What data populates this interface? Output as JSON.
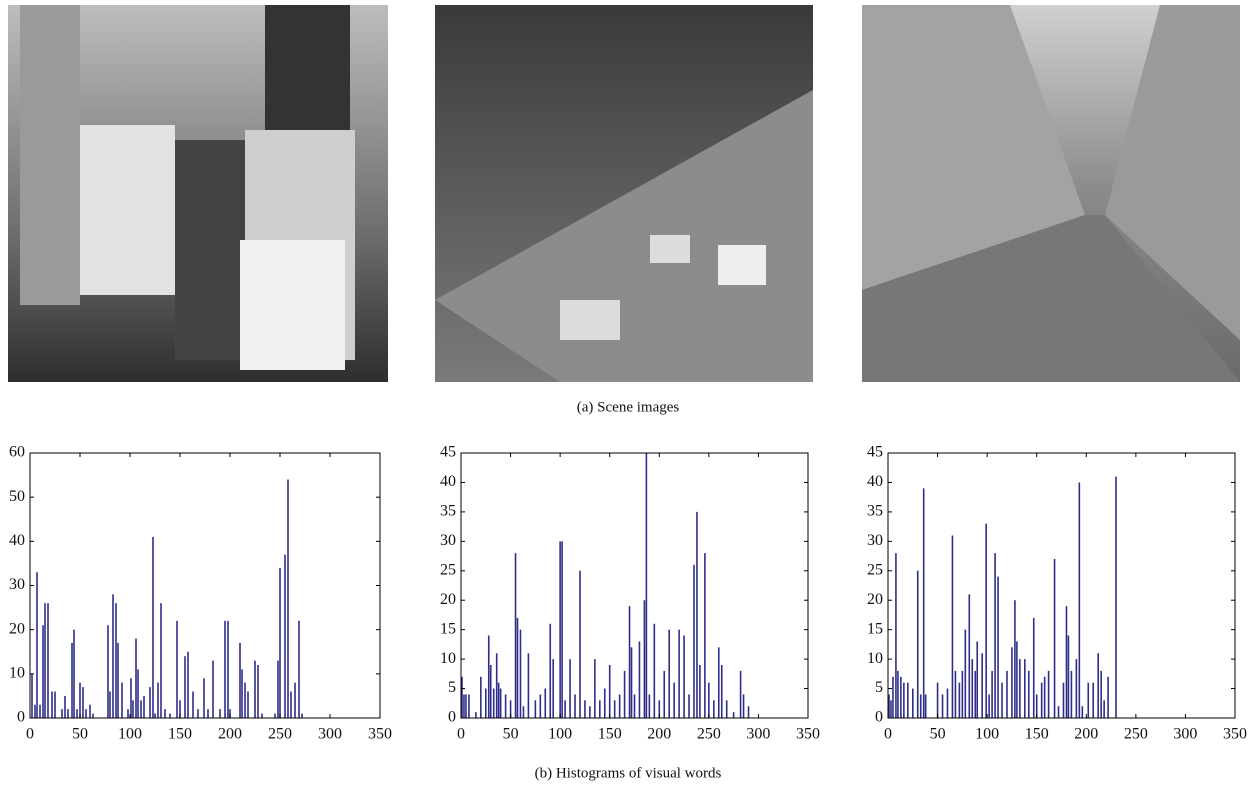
{
  "captions": [
    "(a)  Scene images",
    "(b)  Histograms of visual words"
  ],
  "chart_data": [
    {
      "type": "bar",
      "color": "#2e2e8a",
      "x": [
        2,
        5,
        7,
        10,
        13,
        15,
        18,
        22,
        25,
        32,
        35,
        38,
        42,
        44,
        47,
        50,
        53,
        56,
        60,
        63,
        78,
        80,
        83,
        86,
        88,
        92,
        98,
        101,
        103,
        106,
        108,
        111,
        114,
        120,
        123,
        125,
        128,
        131,
        135,
        140,
        147,
        150,
        155,
        158,
        163,
        168,
        174,
        178,
        183,
        190,
        195,
        198,
        200,
        210,
        212,
        215,
        218,
        225,
        228,
        232,
        245,
        248,
        250,
        255,
        258,
        261,
        265,
        269,
        272
      ],
      "values": [
        10,
        3,
        33,
        3,
        21,
        26,
        26,
        6,
        6,
        2,
        5,
        2,
        17,
        20,
        2,
        8,
        7,
        2,
        3,
        1,
        21,
        6,
        28,
        26,
        17,
        8,
        2,
        9,
        4,
        18,
        11,
        4,
        5,
        7,
        41,
        1,
        8,
        26,
        2,
        1,
        22,
        4,
        14,
        15,
        6,
        2,
        9,
        2,
        13,
        2,
        22,
        22,
        2,
        17,
        11,
        8,
        6,
        13,
        12,
        1,
        1,
        13,
        34,
        37,
        54,
        6,
        8,
        22,
        1
      ],
      "xlim": [
        0,
        350
      ],
      "xticks": [
        0,
        50,
        100,
        150,
        200,
        250,
        300,
        350
      ],
      "ylim": [
        0,
        60
      ],
      "yticks": [
        0,
        10,
        20,
        30,
        40,
        50,
        60
      ]
    },
    {
      "type": "bar",
      "color": "#2e2e8a",
      "x": [
        1,
        3,
        5,
        8,
        15,
        20,
        25,
        28,
        30,
        33,
        36,
        38,
        40,
        45,
        50,
        55,
        57,
        60,
        63,
        68,
        75,
        80,
        85,
        90,
        93,
        100,
        102,
        105,
        110,
        115,
        120,
        125,
        130,
        135,
        140,
        145,
        150,
        155,
        160,
        165,
        170,
        172,
        175,
        180,
        185,
        187,
        190,
        195,
        200,
        205,
        210,
        215,
        220,
        225,
        230,
        235,
        238,
        241,
        246,
        250,
        255,
        260,
        263,
        268,
        275,
        282,
        285,
        290,
        300
      ],
      "values": [
        7,
        4,
        4,
        4,
        1,
        7,
        5,
        14,
        9,
        5,
        11,
        6,
        5,
        4,
        3,
        28,
        17,
        15,
        2,
        11,
        3,
        4,
        5,
        16,
        10,
        30,
        30,
        3,
        10,
        4,
        25,
        3,
        2,
        10,
        3,
        5,
        9,
        3,
        4,
        8,
        19,
        12,
        4,
        13,
        20,
        45,
        4,
        16,
        3,
        8,
        15,
        6,
        15,
        14,
        4,
        26,
        35,
        9,
        28,
        6,
        3,
        12,
        9,
        3,
        1,
        8,
        4,
        2,
        0
      ],
      "xlim": [
        0,
        350
      ],
      "xticks": [
        0,
        50,
        100,
        150,
        200,
        250,
        300,
        350
      ],
      "ylim": [
        0,
        45
      ],
      "yticks": [
        0,
        5,
        10,
        15,
        20,
        25,
        30,
        35,
        40,
        45
      ]
    },
    {
      "type": "bar",
      "color": "#2e2e8a",
      "x": [
        1,
        3,
        5,
        8,
        10,
        13,
        16,
        20,
        25,
        30,
        33,
        36,
        38,
        50,
        55,
        60,
        65,
        68,
        72,
        75,
        78,
        82,
        85,
        88,
        90,
        95,
        99,
        102,
        105,
        108,
        111,
        115,
        120,
        125,
        128,
        130,
        133,
        138,
        142,
        147,
        150,
        155,
        158,
        162,
        168,
        172,
        177,
        180,
        182,
        185,
        190,
        193,
        196,
        202,
        207,
        212,
        215,
        218,
        222,
        230
      ],
      "values": [
        4,
        3,
        7,
        28,
        8,
        7,
        6,
        6,
        5,
        25,
        4,
        39,
        4,
        6,
        4,
        5,
        31,
        8,
        6,
        8,
        15,
        21,
        10,
        8,
        13,
        11,
        33,
        4,
        8,
        28,
        24,
        6,
        8,
        12,
        20,
        13,
        10,
        10,
        8,
        17,
        4,
        6,
        7,
        8,
        27,
        2,
        6,
        19,
        14,
        8,
        10,
        40,
        2,
        6,
        6,
        11,
        8,
        3,
        7,
        41
      ],
      "xlim": [
        0,
        350
      ],
      "xticks": [
        0,
        50,
        100,
        150,
        200,
        250,
        300,
        350
      ],
      "ylim": [
        0,
        45
      ],
      "yticks": [
        0,
        5,
        10,
        15,
        20,
        25,
        30,
        35,
        40,
        45
      ]
    }
  ]
}
